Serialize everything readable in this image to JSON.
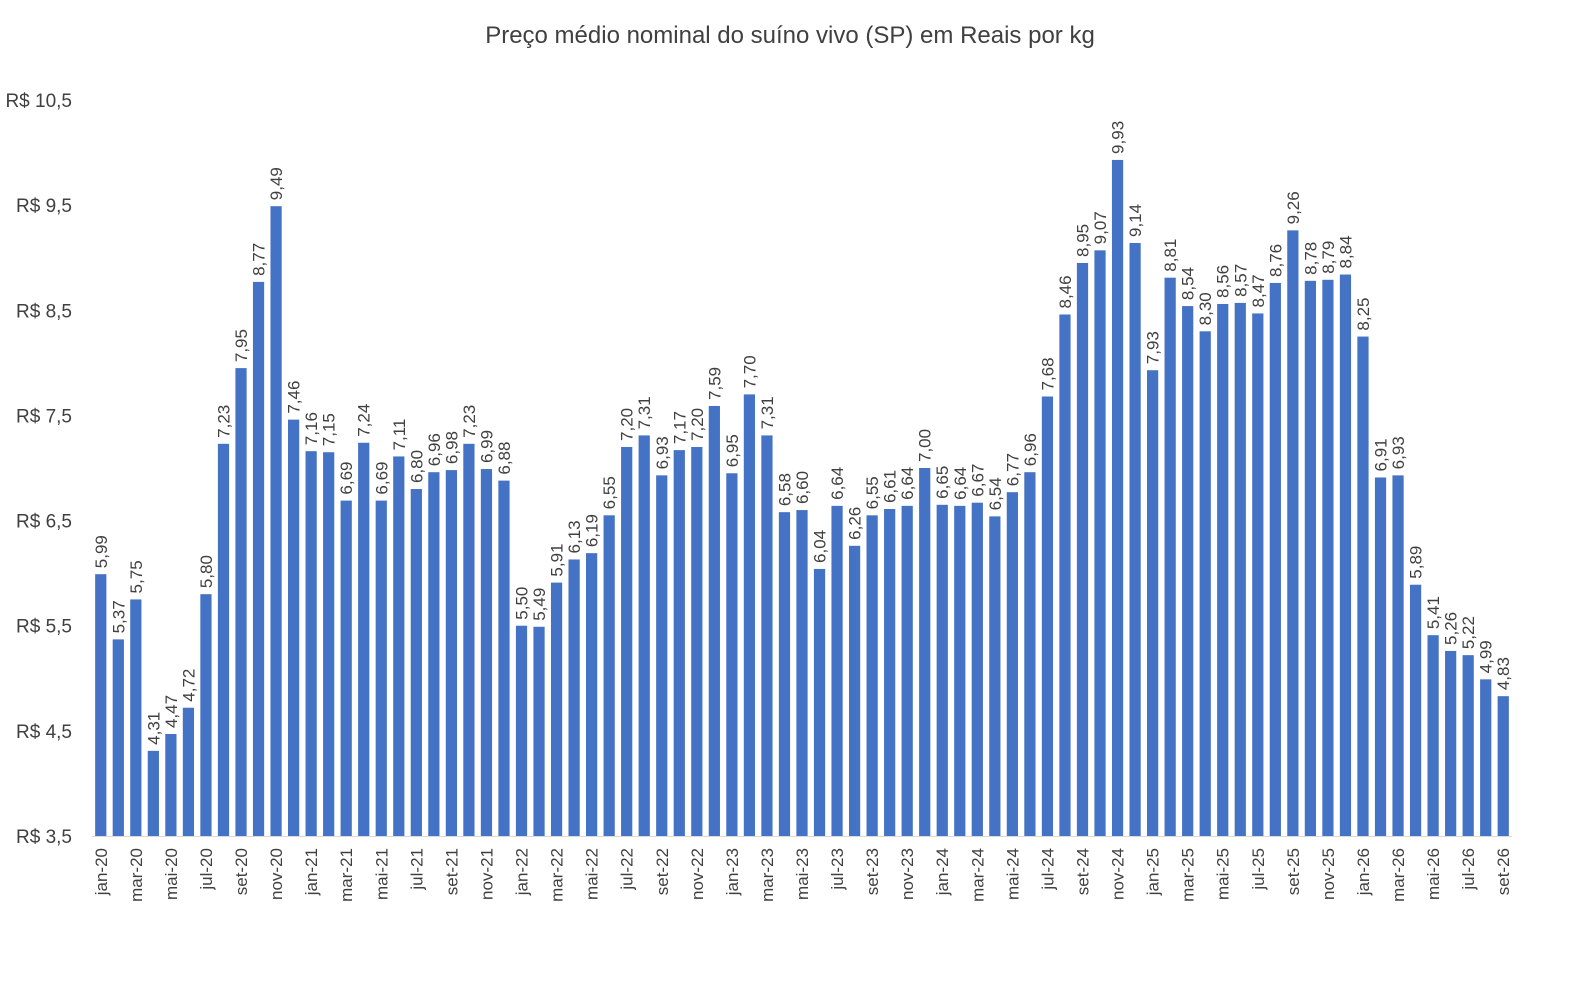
{
  "chart_data": {
    "type": "bar",
    "title": "Preço médio nominal do suíno vivo (SP) em Reais por kg",
    "xlabel": "",
    "ylabel": "",
    "ylim": [
      3.5,
      10.5
    ],
    "yticks": [
      "R$ 3,5",
      "R$ 4,5",
      "R$ 5,5",
      "R$ 6,5",
      "R$ 7,5",
      "R$ 8,5",
      "R$ 9,5",
      "R$ 10,5"
    ],
    "ytick_values": [
      3.5,
      4.5,
      5.5,
      6.5,
      7.5,
      8.5,
      9.5,
      10.5
    ],
    "grid": false,
    "legend": "none",
    "bar_color": "#4472C4",
    "categories": [
      "jan-20",
      "fev-20",
      "mar-20",
      "abr-20",
      "mai-20",
      "jun-20",
      "jul-20",
      "ago-20",
      "set-20",
      "out-20",
      "nov-20",
      "dez-20",
      "jan-21",
      "fev-21",
      "mar-21",
      "abr-21",
      "mai-21",
      "jun-21",
      "jul-21",
      "ago-21",
      "set-21",
      "out-21",
      "nov-21",
      "dez-21",
      "jan-22",
      "fev-22",
      "mar-22",
      "abr-22",
      "mai-22",
      "jun-22",
      "jul-22",
      "ago-22",
      "set-22",
      "out-22",
      "nov-22",
      "dez-22",
      "jan-23",
      "fev-23",
      "mar-23",
      "abr-23",
      "mai-23",
      "jun-23",
      "jul-23",
      "ago-23",
      "set-23",
      "out-23",
      "nov-23",
      "dez-23",
      "jan-24",
      "fev-24",
      "mar-24",
      "abr-24",
      "mai-24",
      "jun-24",
      "jul-24",
      "ago-24",
      "set-24",
      "out-24",
      "nov-24",
      "dez-24",
      "jan-25",
      "fev-25",
      "mar-25",
      "abr-25",
      "mai-25",
      "jun-25",
      "jul-25",
      "ago-25",
      "set-25",
      "out-25",
      "nov-25",
      "dez-25",
      "jan-26",
      "fev-26",
      "mar-26",
      "abr-26",
      "mai-26",
      "jun-26",
      "jul-26",
      "ago-26",
      "set-26"
    ],
    "shown_category_labels": [
      "jan-20",
      "mar-20",
      "mai-20",
      "jul-20",
      "set-20",
      "nov-20",
      "jan-21",
      "mar-21",
      "mai-21",
      "jul-21",
      "set-21",
      "nov-21",
      "jan-22",
      "mar-22",
      "mai-22",
      "jul-22",
      "set-22",
      "nov-22",
      "jan-23",
      "mar-23",
      "mai-23",
      "jul-23",
      "set-23",
      "nov-23",
      "jan-24",
      "mar-24",
      "mai-24",
      "jul-24",
      "set-24",
      "nov-24",
      "jan-25",
      "mar-25",
      "mai-25",
      "jul-25",
      "set-25",
      "nov-25",
      "jan-26",
      "mar-26",
      "mai-26",
      "jul-26",
      "set-26"
    ],
    "values": [
      5.99,
      5.37,
      5.75,
      4.31,
      4.47,
      4.72,
      5.8,
      7.23,
      7.95,
      8.77,
      9.49,
      7.46,
      7.16,
      7.15,
      6.69,
      7.24,
      6.69,
      7.11,
      6.8,
      6.96,
      6.98,
      7.23,
      6.99,
      6.88,
      5.5,
      5.49,
      5.91,
      6.13,
      6.19,
      6.55,
      7.2,
      7.31,
      6.93,
      7.17,
      7.2,
      7.59,
      6.95,
      7.7,
      7.31,
      6.58,
      6.6,
      6.04,
      6.64,
      6.26,
      6.55,
      6.61,
      6.64,
      7.0,
      6.65,
      6.64,
      6.67,
      6.54,
      6.77,
      6.96,
      7.68,
      8.46,
      8.95,
      9.07,
      9.93,
      9.14,
      7.93,
      8.81,
      8.54,
      8.3,
      8.56,
      8.57,
      8.47,
      8.76,
      9.26,
      8.78,
      8.79,
      8.84,
      8.25,
      6.91,
      6.93,
      5.89,
      5.41,
      5.26,
      5.22,
      4.99,
      4.83
    ],
    "data_labels": [
      "5,99",
      "5,37",
      "5,75",
      "4,31",
      "4,47",
      "4,72",
      "5,80",
      "7,23",
      "7,95",
      "8,77",
      "9,49",
      "7,46",
      "7,16",
      "7,15",
      "6,69",
      "7,24",
      "6,69",
      "7,11",
      "6,80",
      "6,96",
      "6,98",
      "7,23",
      "6,99",
      "6,88",
      "5,50",
      "5,49",
      "5,91",
      "6,13",
      "6,19",
      "6,55",
      "7,20",
      "7,31",
      "6,93",
      "7,17",
      "7,20",
      "7,59",
      "6,95",
      "7,70",
      "7,31",
      "6,58",
      "6,60",
      "6,04",
      "6,64",
      "6,26",
      "6,55",
      "6,61",
      "6,64",
      "7,00",
      "6,65",
      "6,64",
      "6,67",
      "6,54",
      "6,77",
      "6,96",
      "7,68",
      "8,46",
      "8,95",
      "9,07",
      "9,93",
      "9,14",
      "7,93",
      "8,81",
      "8,54",
      "8,30",
      "8,56",
      "8,57",
      "8,47",
      "8,76",
      "9,26",
      "8,78",
      "8,79",
      "8,84",
      "8,25",
      "6,91",
      "6,93",
      "5,89",
      "5,41",
      "5,26",
      "5,22",
      "4,99",
      "4,83"
    ]
  }
}
